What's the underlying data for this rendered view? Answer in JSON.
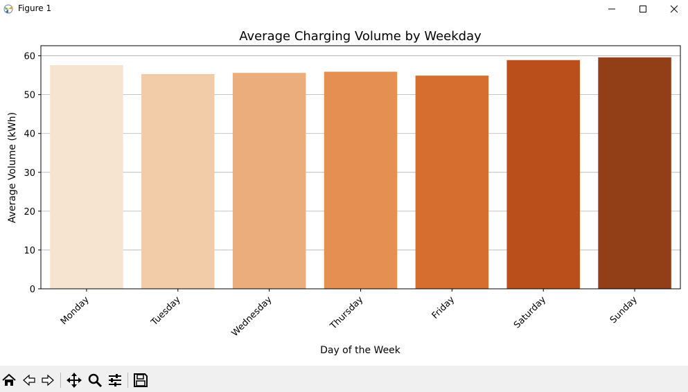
{
  "window": {
    "title": "Figure 1"
  },
  "toolbar": {
    "icons": [
      "home-icon",
      "back-arrow-icon",
      "forward-arrow-icon",
      "pan-icon",
      "zoom-icon",
      "configure-subplots-icon",
      "save-icon"
    ]
  },
  "chart_data": {
    "type": "bar",
    "title": "Average Charging Volume by Weekday",
    "xlabel": "Day of the Week",
    "ylabel": "Average Volume (kWh)",
    "categories": [
      "Monday",
      "Tuesday",
      "Wednesday",
      "Thursday",
      "Friday",
      "Saturday",
      "Sunday"
    ],
    "values": [
      57.6,
      55.3,
      55.6,
      55.9,
      54.9,
      58.9,
      59.6
    ],
    "colors": [
      "#f6e4d0",
      "#f2cca8",
      "#ebad7b",
      "#e68f53",
      "#d66e2f",
      "#bb4f1b",
      "#923e16"
    ],
    "ylim": [
      0,
      62.6
    ],
    "yticks": [
      0,
      10,
      20,
      30,
      40,
      50,
      60
    ],
    "grid": "y"
  }
}
